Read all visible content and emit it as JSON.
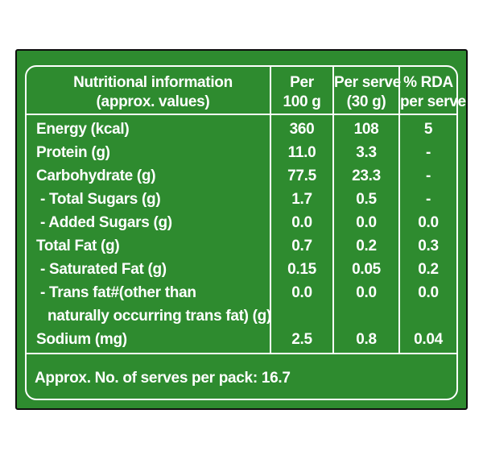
{
  "header": {
    "title_line1": "Nutritional information",
    "title_line2": "(approx. values)",
    "col1_line1": "Per",
    "col1_line2": "100 g",
    "col2_line1": "Per serve",
    "col2_line2": "(30 g)",
    "col3_line1": "% RDA",
    "col3_line2": "per serve"
  },
  "rows": [
    {
      "label": "Energy (kcal)",
      "per100": "360",
      "perserve": "108",
      "rda": "5"
    },
    {
      "label": "Protein (g)",
      "per100": "11.0",
      "perserve": "3.3",
      "rda": "-"
    },
    {
      "label": "Carbohydrate (g)",
      "per100": "77.5",
      "perserve": "23.3",
      "rda": "-"
    },
    {
      "label": " - Total Sugars (g)",
      "per100": "1.7",
      "perserve": "0.5",
      "rda": "-"
    },
    {
      "label": " - Added Sugars (g)",
      "per100": "0.0",
      "perserve": "0.0",
      "rda": "0.0"
    },
    {
      "label": "Total Fat (g)",
      "per100": "0.7",
      "perserve": "0.2",
      "rda": "0.3"
    },
    {
      "label": " - Saturated Fat (g)",
      "per100": "0.15",
      "perserve": "0.05",
      "rda": "0.2"
    },
    {
      "label": " - Trans fat#(other than",
      "label_line2": "naturally occurring trans fat) (g)",
      "per100": "0.0",
      "perserve": "0.0",
      "rda": "0.0"
    },
    {
      "label": "Sodium (mg)",
      "per100": "2.5",
      "perserve": "0.8",
      "rda": "0.04"
    }
  ],
  "footer": "Approx. No. of serves per pack: 16.7",
  "colors": {
    "panel": "#2e8b2f",
    "text": "#ffffff",
    "frame": "#0d0d0d"
  }
}
